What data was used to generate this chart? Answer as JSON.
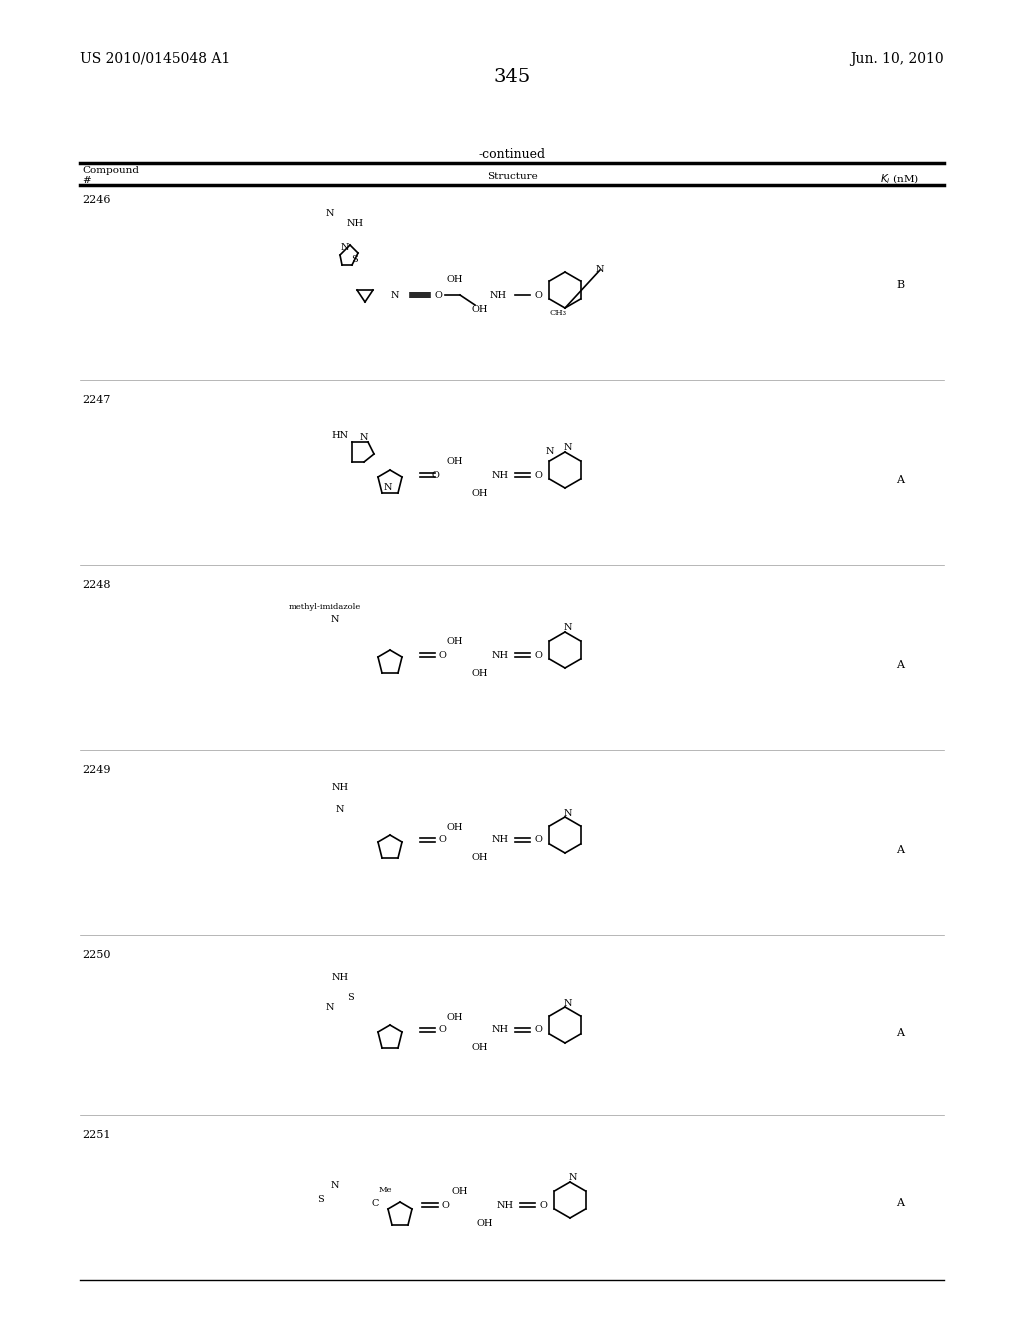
{
  "page_number": "345",
  "patent_number": "US 2010/0145048 A1",
  "patent_date": "Jun. 10, 2010",
  "continued_label": "-continued",
  "table_headers": [
    "Compound\n#",
    "Structure",
    "Ki (nM)"
  ],
  "compounds": [
    {
      "number": "2246",
      "ki": "B"
    },
    {
      "number": "2247",
      "ki": "A"
    },
    {
      "number": "2248",
      "ki": "A"
    },
    {
      "number": "2249",
      "ki": "A"
    },
    {
      "number": "2250",
      "ki": "A"
    },
    {
      "number": "2251",
      "ki": "A"
    }
  ],
  "background_color": "#ffffff",
  "text_color": "#000000",
  "font_size_header": 9,
  "font_size_body": 9,
  "font_size_page_num": 14,
  "font_size_patent": 10
}
